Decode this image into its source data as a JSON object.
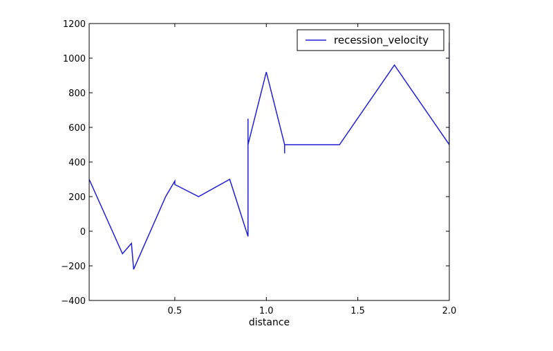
{
  "chart_data": {
    "type": "line",
    "title": "",
    "xlabel": "distance",
    "ylabel": "",
    "xlim": [
      0.032,
      2.0
    ],
    "ylim": [
      -400,
      1200
    ],
    "x_ticks": [
      0.5,
      1.0,
      1.5,
      2.0
    ],
    "x_tick_labels": [
      "0.5",
      "1.0",
      "1.5",
      "2.0"
    ],
    "y_ticks": [
      -400,
      -200,
      0,
      200,
      400,
      600,
      800,
      1000,
      1200
    ],
    "y_tick_labels": [
      "−400",
      "−200",
      "0",
      "200",
      "400",
      "600",
      "800",
      "1000",
      "1200"
    ],
    "grid": false,
    "legend_position": "top-right",
    "series": [
      {
        "name": "recession_velocity",
        "color": "#1f1fd6",
        "x": [
          0.032,
          0.214,
          0.263,
          0.275,
          0.45,
          0.5,
          0.5,
          0.63,
          0.8,
          0.9,
          0.9,
          0.9,
          0.9,
          0.9,
          1.0,
          1.1,
          1.1,
          1.1,
          1.4,
          1.7,
          2.0,
          2.0
        ],
        "y": [
          300,
          -130,
          -70,
          -220,
          200,
          290,
          270,
          200,
          300,
          -30,
          650,
          150,
          500,
          500,
          920,
          500,
          450,
          500,
          500,
          960,
          500,
          1090
        ]
      }
    ]
  }
}
